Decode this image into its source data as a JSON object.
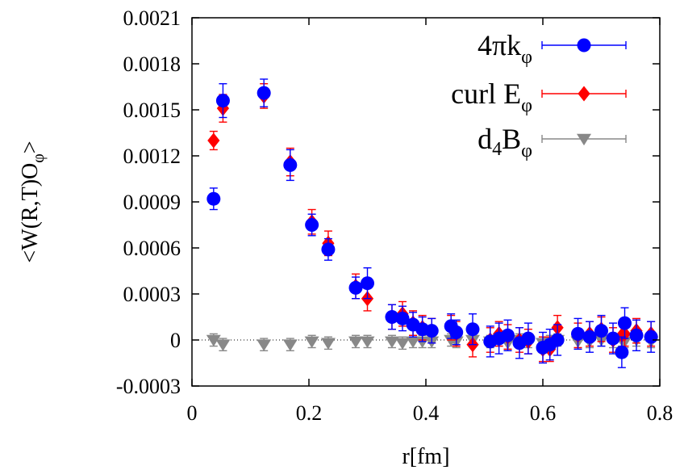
{
  "chart_data": {
    "type": "scatter",
    "title": "",
    "xlabel": "r[fm]",
    "ylabel": "<W(R,T)O_φ>",
    "xlim": [
      0,
      0.8
    ],
    "ylim": [
      -0.0003,
      0.0021
    ],
    "x_ticks": [
      "0",
      "0.2",
      "0.4",
      "0.6",
      "0.8"
    ],
    "y_ticks": [
      "-0.0003",
      "0",
      "0.0003",
      "0.0006",
      "0.0009",
      "0.0012",
      "0.0015",
      "0.0018",
      "0.0021"
    ],
    "legend_position": "top-right",
    "zero_reference_line": true,
    "series": [
      {
        "name": "4πkφ",
        "legend_main": "4πk",
        "legend_sub": "φ",
        "color": "#0000ff",
        "marker": "circle",
        "x": [
          0.037,
          0.053,
          0.123,
          0.168,
          0.205,
          0.233,
          0.28,
          0.3,
          0.342,
          0.36,
          0.378,
          0.394,
          0.41,
          0.443,
          0.452,
          0.48,
          0.51,
          0.525,
          0.54,
          0.56,
          0.575,
          0.6,
          0.612,
          0.625,
          0.66,
          0.68,
          0.7,
          0.72,
          0.735,
          0.74,
          0.76,
          0.785
        ],
        "y": [
          0.00092,
          0.00156,
          0.00161,
          0.00114,
          0.00075,
          0.00059,
          0.00034,
          0.00037,
          0.00015,
          0.00014,
          0.0001,
          7e-05,
          6e-05,
          9e-05,
          5e-05,
          7e-05,
          -1e-05,
          1e-05,
          3e-05,
          -2e-05,
          1e-05,
          -5e-05,
          -3e-05,
          0.0,
          4e-05,
          2e-05,
          6e-05,
          1e-05,
          -8e-05,
          0.00011,
          3e-05,
          2e-05
        ],
        "err": [
          7e-05,
          0.00011,
          9e-05,
          0.0001,
          7e-05,
          7e-05,
          7e-05,
          0.0001,
          8e-05,
          8e-05,
          8e-05,
          8e-05,
          8e-05,
          8e-05,
          8e-05,
          0.0001,
          0.0001,
          0.0001,
          0.0001,
          0.0001,
          0.0001,
          0.0001,
          0.0001,
          0.0001,
          0.0001,
          0.0001,
          0.0001,
          0.0001,
          0.0001,
          0.0001,
          0.0001,
          0.0001
        ]
      },
      {
        "name": "curl Eφ",
        "legend_main": "curl E",
        "legend_sub": "φ",
        "color": "#ff0000",
        "marker": "diamond",
        "x": [
          0.037,
          0.053,
          0.123,
          0.168,
          0.205,
          0.233,
          0.28,
          0.3,
          0.342,
          0.36,
          0.378,
          0.394,
          0.41,
          0.443,
          0.452,
          0.48,
          0.51,
          0.525,
          0.54,
          0.56,
          0.575,
          0.6,
          0.612,
          0.625,
          0.66,
          0.68,
          0.7,
          0.72,
          0.735,
          0.74,
          0.76,
          0.785
        ],
        "y": [
          0.0013,
          0.00151,
          0.00159,
          0.00116,
          0.00077,
          0.00063,
          0.00035,
          0.00027,
          0.00015,
          0.00017,
          0.00011,
          8e-05,
          6e-05,
          8e-05,
          4e-05,
          -3e-05,
          0.0,
          4e-05,
          2e-05,
          0.0,
          -1e-05,
          -6e-05,
          -6e-05,
          8e-05,
          3e-05,
          4e-05,
          7e-05,
          0.0,
          3e-05,
          4e-05,
          6e-05,
          4e-05
        ],
        "err": [
          6e-05,
          9e-05,
          8e-05,
          9e-05,
          8e-05,
          8e-05,
          8e-05,
          8e-05,
          8e-05,
          8e-05,
          8e-05,
          8e-05,
          8e-05,
          8e-05,
          8e-05,
          8e-05,
          8e-05,
          8e-05,
          8e-05,
          8e-05,
          8e-05,
          8e-05,
          8e-05,
          8e-05,
          8e-05,
          8e-05,
          8e-05,
          8e-05,
          8e-05,
          8e-05,
          8e-05,
          8e-05
        ]
      },
      {
        "name": "d4Bφ",
        "legend_main": "d",
        "legend_sub1": "4",
        "legend_main2": "B",
        "legend_sub": "φ",
        "color": "#888888",
        "marker": "triangle-down",
        "x": [
          0.037,
          0.053,
          0.123,
          0.168,
          0.205,
          0.233,
          0.28,
          0.3,
          0.342,
          0.36,
          0.378,
          0.394,
          0.41,
          0.443,
          0.452,
          0.48,
          0.51,
          0.525,
          0.54,
          0.56,
          0.575,
          0.6,
          0.612,
          0.625,
          0.66,
          0.68,
          0.7,
          0.72,
          0.735,
          0.74,
          0.76,
          0.785
        ],
        "y": [
          0.0,
          -3e-05,
          -3e-05,
          -3e-05,
          -1e-05,
          -2e-05,
          -1e-05,
          -1e-05,
          -1e-05,
          -2e-05,
          -1e-05,
          -1e-05,
          -1e-05,
          0.0,
          -1e-05,
          0.0,
          -1e-05,
          0.0,
          -2e-05,
          0.0,
          -1e-05,
          -2e-05,
          -1e-05,
          0.0,
          -1e-05,
          -1e-05,
          0.0,
          -1e-05,
          0.0,
          -1e-05,
          0.0,
          -1e-05
        ],
        "err": [
          4e-05,
          4e-05,
          4e-05,
          4e-05,
          4e-05,
          4e-05,
          4e-05,
          4e-05,
          4e-05,
          4e-05,
          4e-05,
          4e-05,
          4e-05,
          4e-05,
          4e-05,
          4e-05,
          4e-05,
          4e-05,
          4e-05,
          4e-05,
          4e-05,
          4e-05,
          4e-05,
          4e-05,
          4e-05,
          4e-05,
          4e-05,
          4e-05,
          4e-05,
          4e-05,
          4e-05,
          4e-05
        ]
      }
    ]
  }
}
